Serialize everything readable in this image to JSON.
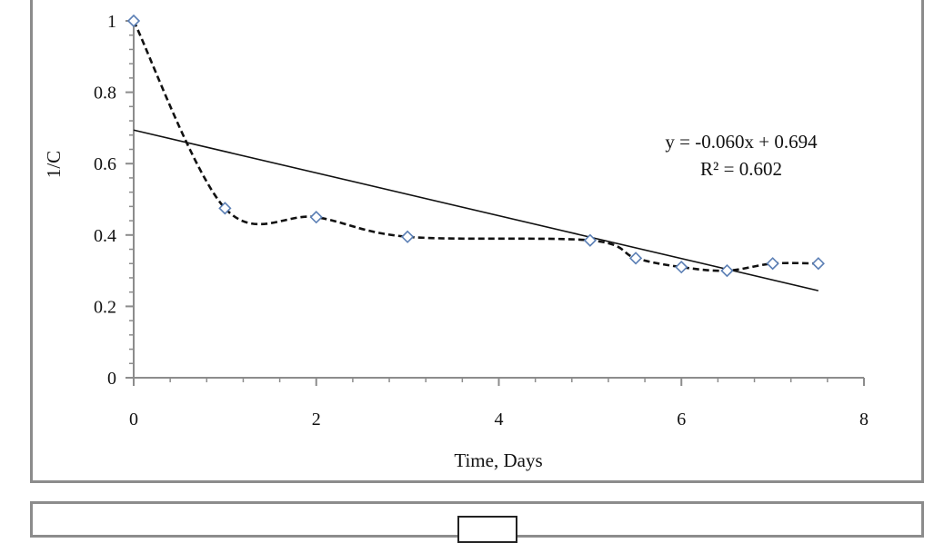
{
  "chart_data": {
    "type": "scatter",
    "xlabel": "Time, Days",
    "ylabel": "1/C",
    "xlim": [
      0,
      8
    ],
    "ylim": [
      0,
      1
    ],
    "x_ticks": [
      0,
      2,
      4,
      6,
      8
    ],
    "y_ticks": [
      0,
      0.2,
      0.4,
      0.6,
      0.8,
      1
    ],
    "x_tick_labels": [
      "0",
      "2",
      "4",
      "6",
      "8"
    ],
    "y_tick_labels": [
      "0",
      "0.2",
      "0.4",
      "0.6",
      "0.8",
      "1"
    ],
    "grid": false,
    "series": [
      {
        "marker": "diamond",
        "marker_color": "#5b7fb5",
        "connector": "smoothed-dashed",
        "x": [
          0,
          1,
          2,
          3,
          5,
          5.5,
          6,
          6.5,
          7,
          7.5
        ],
        "values": [
          1.0,
          0.475,
          0.45,
          0.395,
          0.385,
          0.335,
          0.31,
          0.3,
          0.32,
          0.32
        ]
      }
    ],
    "trendline": {
      "type": "linear",
      "slope": -0.06,
      "intercept": 0.694,
      "x_range": [
        0,
        7.5
      ],
      "equation": "y = -0.060x + 0.694",
      "r_squared": "R² = 0.602"
    }
  }
}
